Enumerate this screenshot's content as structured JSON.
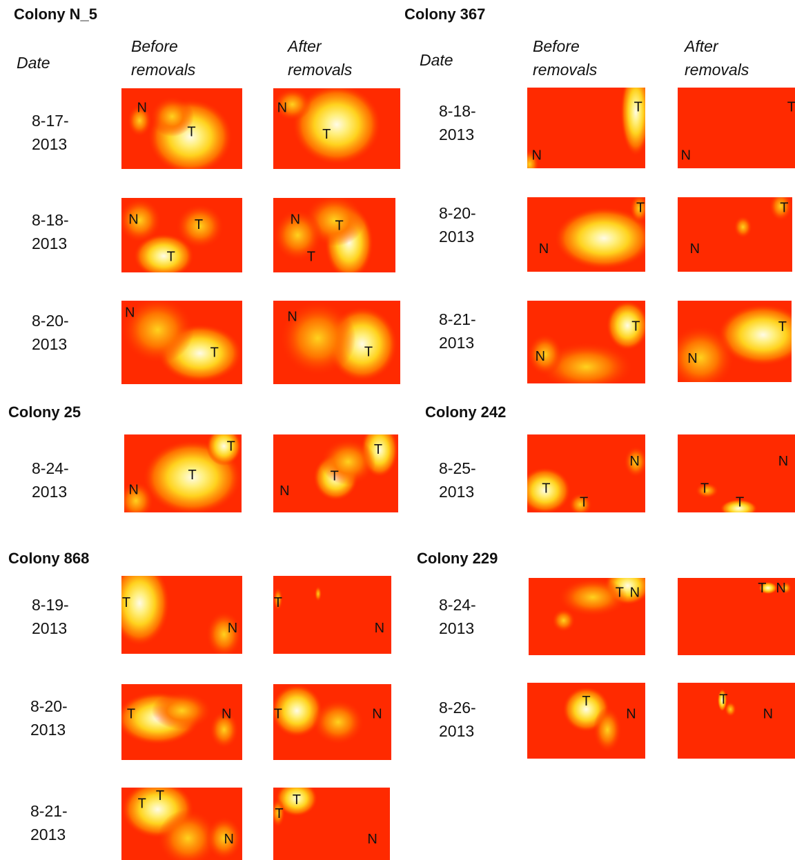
{
  "colors": {
    "background_heat": "#ff2a00",
    "warm": "#ff7800",
    "hot": "#ffd21e",
    "peak": "#fffbe6"
  },
  "headers": {
    "date": "Date",
    "before": "Before\nremovals",
    "after": "After\nremovals"
  },
  "colonies": [
    {
      "title": "Colony N_5",
      "rows": [
        {
          "date": "8-17-\n2013",
          "before": {
            "blobs": [
              [
                0.57,
                0.6,
                0.35,
                0.47,
                1.0
              ],
              [
                0.42,
                0.35,
                0.18,
                0.25,
                0.55
              ],
              [
                0.15,
                0.4,
                0.1,
                0.2,
                0.5
              ]
            ],
            "labels": [
              [
                "N",
                0.17,
                0.25
              ],
              [
                "T",
                0.58,
                0.55
              ]
            ]
          },
          "after": {
            "blobs": [
              [
                0.5,
                0.45,
                0.35,
                0.5,
                1.0
              ],
              [
                0.15,
                0.2,
                0.15,
                0.2,
                0.55
              ]
            ],
            "labels": [
              [
                "N",
                0.07,
                0.25
              ],
              [
                "T",
                0.42,
                0.58
              ]
            ]
          }
        },
        {
          "date": "8-18-\n2013",
          "before": {
            "blobs": [
              [
                0.35,
                0.78,
                0.25,
                0.3,
                1.0
              ],
              [
                0.15,
                0.3,
                0.18,
                0.3,
                0.7
              ],
              [
                0.65,
                0.38,
                0.2,
                0.3,
                0.55
              ]
            ],
            "labels": [
              [
                "N",
                0.1,
                0.3
              ],
              [
                "T",
                0.64,
                0.37
              ],
              [
                "T",
                0.41,
                0.8
              ]
            ]
          },
          "after": {
            "blobs": [
              [
                0.62,
                0.6,
                0.2,
                0.5,
                1.0
              ],
              [
                0.5,
                0.3,
                0.25,
                0.35,
                0.75
              ],
              [
                0.2,
                0.5,
                0.2,
                0.35,
                0.6
              ]
            ],
            "labels": [
              [
                "N",
                0.18,
                0.3
              ],
              [
                "T",
                0.54,
                0.38
              ],
              [
                "T",
                0.31,
                0.8
              ]
            ]
          }
        },
        {
          "date": "8-20-\n2013",
          "before": {
            "blobs": [
              [
                0.65,
                0.63,
                0.35,
                0.35,
                1.0
              ],
              [
                0.3,
                0.35,
                0.3,
                0.4,
                0.75
              ]
            ],
            "labels": [
              [
                "N",
                0.07,
                0.15
              ],
              [
                "T",
                0.77,
                0.63
              ]
            ]
          },
          "after": {
            "blobs": [
              [
                0.7,
                0.52,
                0.28,
                0.45,
                1.0
              ],
              [
                0.35,
                0.45,
                0.3,
                0.45,
                0.6
              ]
            ],
            "labels": [
              [
                "N",
                0.15,
                0.2
              ],
              [
                "T",
                0.75,
                0.62
              ]
            ]
          }
        }
      ]
    },
    {
      "title": "Colony 367",
      "rows": [
        {
          "date": "8-18-\n2013",
          "before": {
            "blobs": [
              [
                0.92,
                0.3,
                0.13,
                0.55,
                1.0
              ],
              [
                0.02,
                0.95,
                0.08,
                0.18,
                0.55
              ]
            ],
            "labels": [
              [
                "N",
                0.08,
                0.85
              ],
              [
                "T",
                0.94,
                0.25
              ]
            ]
          },
          "after": {
            "blobs": [],
            "labels": [
              [
                "N",
                0.07,
                0.85
              ],
              [
                "T",
                0.97,
                0.25
              ]
            ]
          }
        },
        {
          "date": "8-20-\n2013",
          "before": {
            "blobs": [
              [
                0.65,
                0.55,
                0.42,
                0.42,
                1.0
              ],
              [
                0.95,
                0.15,
                0.08,
                0.2,
                0.8
              ]
            ],
            "labels": [
              [
                "N",
                0.14,
                0.7
              ],
              [
                "T",
                0.96,
                0.15
              ]
            ]
          },
          "after": {
            "blobs": [
              [
                0.57,
                0.4,
                0.08,
                0.15,
                0.6
              ],
              [
                0.9,
                0.12,
                0.1,
                0.2,
                0.8
              ]
            ],
            "labels": [
              [
                "N",
                0.15,
                0.7
              ],
              [
                "T",
                0.93,
                0.15
              ]
            ]
          }
        },
        {
          "date": "8-21-\n2013",
          "before": {
            "blobs": [
              [
                0.85,
                0.3,
                0.18,
                0.3,
                1.0
              ],
              [
                0.5,
                0.8,
                0.4,
                0.3,
                0.75
              ],
              [
                0.15,
                0.65,
                0.15,
                0.25,
                0.5
              ]
            ],
            "labels": [
              [
                "N",
                0.11,
                0.68
              ],
              [
                "T",
                0.92,
                0.32
              ]
            ]
          },
          "after": {
            "blobs": [
              [
                0.75,
                0.42,
                0.4,
                0.38,
                1.0
              ],
              [
                0.2,
                0.7,
                0.3,
                0.4,
                0.55
              ]
            ],
            "labels": [
              [
                "N",
                0.13,
                0.72
              ],
              [
                "T",
                0.92,
                0.33
              ]
            ]
          }
        }
      ]
    },
    {
      "title": "Colony 25",
      "rows": [
        {
          "date": "8-24-\n2013",
          "before": {
            "blobs": [
              [
                0.58,
                0.55,
                0.42,
                0.48,
                1.0
              ],
              [
                0.85,
                0.15,
                0.15,
                0.25,
                0.95
              ],
              [
                0.1,
                0.85,
                0.15,
                0.25,
                0.6
              ]
            ],
            "labels": [
              [
                "N",
                0.08,
                0.72
              ],
              [
                "T",
                0.91,
                0.16
              ],
              [
                "T",
                0.58,
                0.53
              ]
            ]
          },
          "after": {
            "blobs": [
              [
                0.5,
                0.55,
                0.18,
                0.3,
                1.0
              ],
              [
                0.85,
                0.2,
                0.15,
                0.35,
                1.0
              ],
              [
                0.6,
                0.35,
                0.22,
                0.3,
                0.45
              ]
            ],
            "labels": [
              [
                "N",
                0.09,
                0.73
              ],
              [
                "T",
                0.84,
                0.2
              ],
              [
                "T",
                0.49,
                0.54
              ]
            ]
          }
        }
      ]
    },
    {
      "title": "Colony 242",
      "rows": [
        {
          "date": "8-25-\n2013",
          "before": {
            "blobs": [
              [
                0.15,
                0.72,
                0.22,
                0.3,
                1.0
              ],
              [
                0.45,
                0.9,
                0.1,
                0.15,
                0.6
              ],
              [
                0.92,
                0.35,
                0.1,
                0.2,
                0.5
              ]
            ],
            "labels": [
              [
                "N",
                0.91,
                0.35
              ],
              [
                "T",
                0.16,
                0.7
              ],
              [
                "T",
                0.48,
                0.88
              ]
            ]
          },
          "after": {
            "blobs": [
              [
                0.52,
                0.95,
                0.16,
                0.12,
                0.85
              ],
              [
                0.25,
                0.72,
                0.1,
                0.1,
                0.5
              ]
            ],
            "labels": [
              [
                "N",
                0.9,
                0.35
              ],
              [
                "T",
                0.23,
                0.7
              ],
              [
                "T",
                0.53,
                0.88
              ]
            ]
          }
        }
      ]
    },
    {
      "title": "Colony 868",
      "rows": [
        {
          "date": "8-19-\n2013",
          "before": {
            "blobs": [
              [
                0.15,
                0.35,
                0.25,
                0.55,
                1.0
              ],
              [
                0.85,
                0.75,
                0.15,
                0.3,
                0.5
              ]
            ],
            "labels": [
              [
                "T",
                0.04,
                0.35
              ],
              [
                "N",
                0.92,
                0.68
              ]
            ]
          },
          "after": {
            "blobs": [
              [
                0.38,
                0.23,
                0.03,
                0.1,
                0.7
              ],
              [
                0.04,
                0.3,
                0.04,
                0.15,
                0.5
              ]
            ],
            "labels": [
              [
                "T",
                0.04,
                0.35
              ],
              [
                "N",
                0.9,
                0.68
              ]
            ]
          }
        },
        {
          "date": "8-20-\n2013",
          "before": {
            "blobs": [
              [
                0.3,
                0.45,
                0.35,
                0.35,
                1.0
              ],
              [
                0.5,
                0.35,
                0.25,
                0.25,
                0.5
              ],
              [
                0.85,
                0.6,
                0.12,
                0.25,
                0.4
              ]
            ],
            "labels": [
              [
                "T",
                0.08,
                0.4
              ],
              [
                "N",
                0.87,
                0.4
              ]
            ]
          },
          "after": {
            "blobs": [
              [
                0.2,
                0.35,
                0.22,
                0.35,
                1.0
              ],
              [
                0.55,
                0.5,
                0.22,
                0.3,
                0.55
              ]
            ],
            "labels": [
              [
                "T",
                0.04,
                0.4
              ],
              [
                "N",
                0.88,
                0.4
              ]
            ]
          }
        },
        {
          "date": "8-21-\n2013",
          "before": {
            "blobs": [
              [
                0.3,
                0.3,
                0.3,
                0.4,
                1.0
              ],
              [
                0.55,
                0.7,
                0.25,
                0.4,
                0.6
              ],
              [
                0.85,
                0.7,
                0.15,
                0.3,
                0.35
              ]
            ],
            "labels": [
              [
                "T",
                0.17,
                0.23
              ],
              [
                "T",
                0.32,
                0.12
              ],
              [
                "N",
                0.89,
                0.72
              ]
            ]
          },
          "after": {
            "blobs": [
              [
                0.2,
                0.15,
                0.18,
                0.25,
                1.0
              ],
              [
                0.04,
                0.35,
                0.06,
                0.2,
                0.7
              ]
            ],
            "labels": [
              [
                "T",
                0.2,
                0.18
              ],
              [
                "T",
                0.05,
                0.37
              ],
              [
                "N",
                0.85,
                0.72
              ]
            ]
          }
        }
      ]
    },
    {
      "title": "Colony 229",
      "rows": [
        {
          "date": "8-24-\n2013",
          "before": {
            "blobs": [
              [
                0.85,
                0.1,
                0.2,
                0.25,
                1.0
              ],
              [
                0.55,
                0.25,
                0.3,
                0.25,
                0.5
              ],
              [
                0.3,
                0.55,
                0.1,
                0.15,
                0.35
              ]
            ],
            "labels": [
              [
                "T",
                0.78,
                0.2
              ],
              [
                "N",
                0.91,
                0.2
              ]
            ]
          },
          "after": {
            "blobs": [
              [
                0.77,
                0.13,
                0.08,
                0.08,
                0.9
              ],
              [
                0.92,
                0.13,
                0.05,
                0.08,
                0.7
              ]
            ],
            "labels": [
              [
                "T",
                0.72,
                0.14
              ],
              [
                "N",
                0.88,
                0.14
              ]
            ]
          }
        },
        {
          "date": "8-26-\n2013",
          "before": {
            "blobs": [
              [
                0.5,
                0.35,
                0.2,
                0.3,
                1.0
              ],
              [
                0.68,
                0.62,
                0.12,
                0.3,
                0.75
              ]
            ],
            "labels": [
              [
                "T",
                0.5,
                0.25
              ],
              [
                "N",
                0.88,
                0.42
              ]
            ]
          },
          "after": {
            "blobs": [
              [
                0.38,
                0.23,
                0.04,
                0.15,
                0.9
              ],
              [
                0.45,
                0.35,
                0.05,
                0.1,
                0.6
              ]
            ],
            "labels": [
              [
                "T",
                0.39,
                0.23
              ],
              [
                "N",
                0.77,
                0.42
              ]
            ]
          }
        }
      ]
    }
  ]
}
